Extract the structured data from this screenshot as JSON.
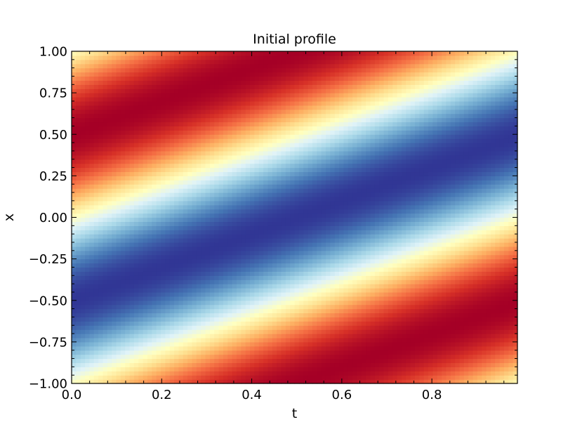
{
  "chart_data": {
    "type": "heatmap",
    "title": "Initial profile",
    "xlabel": "t",
    "ylabel": "x",
    "xlim": [
      0.0,
      0.99
    ],
    "ylim": [
      -1.0,
      1.0
    ],
    "x_ticks": [
      0.0,
      0.2,
      0.4,
      0.6,
      0.8
    ],
    "x_tick_labels": [
      "0.0",
      "0.2",
      "0.4",
      "0.6",
      "0.8"
    ],
    "y_ticks": [
      -1.0,
      -0.75,
      -0.5,
      -0.25,
      0.0,
      0.25,
      0.5,
      0.75,
      1.0
    ],
    "y_tick_labels": [
      "−1.00",
      "−0.75",
      "−0.50",
      "−0.25",
      "0.00",
      "0.25",
      "0.50",
      "0.75",
      "1.00"
    ],
    "grid": false,
    "colormap": "RdYlBu",
    "colorbar": false,
    "field": {
      "form": "sin(pi*(x - t))",
      "nt": 100,
      "nx": 80,
      "value_range": [
        -1.0,
        1.0
      ]
    },
    "colormap_stops": [
      [
        0.0,
        "#a50026"
      ],
      [
        0.1,
        "#d73027"
      ],
      [
        0.2,
        "#f46d43"
      ],
      [
        0.3,
        "#fdae61"
      ],
      [
        0.4,
        "#fee090"
      ],
      [
        0.5,
        "#ffffbf"
      ],
      [
        0.6,
        "#e0f3f8"
      ],
      [
        0.7,
        "#abd9e9"
      ],
      [
        0.8,
        "#74add1"
      ],
      [
        0.9,
        "#4575b4"
      ],
      [
        1.0,
        "#313695"
      ]
    ]
  }
}
